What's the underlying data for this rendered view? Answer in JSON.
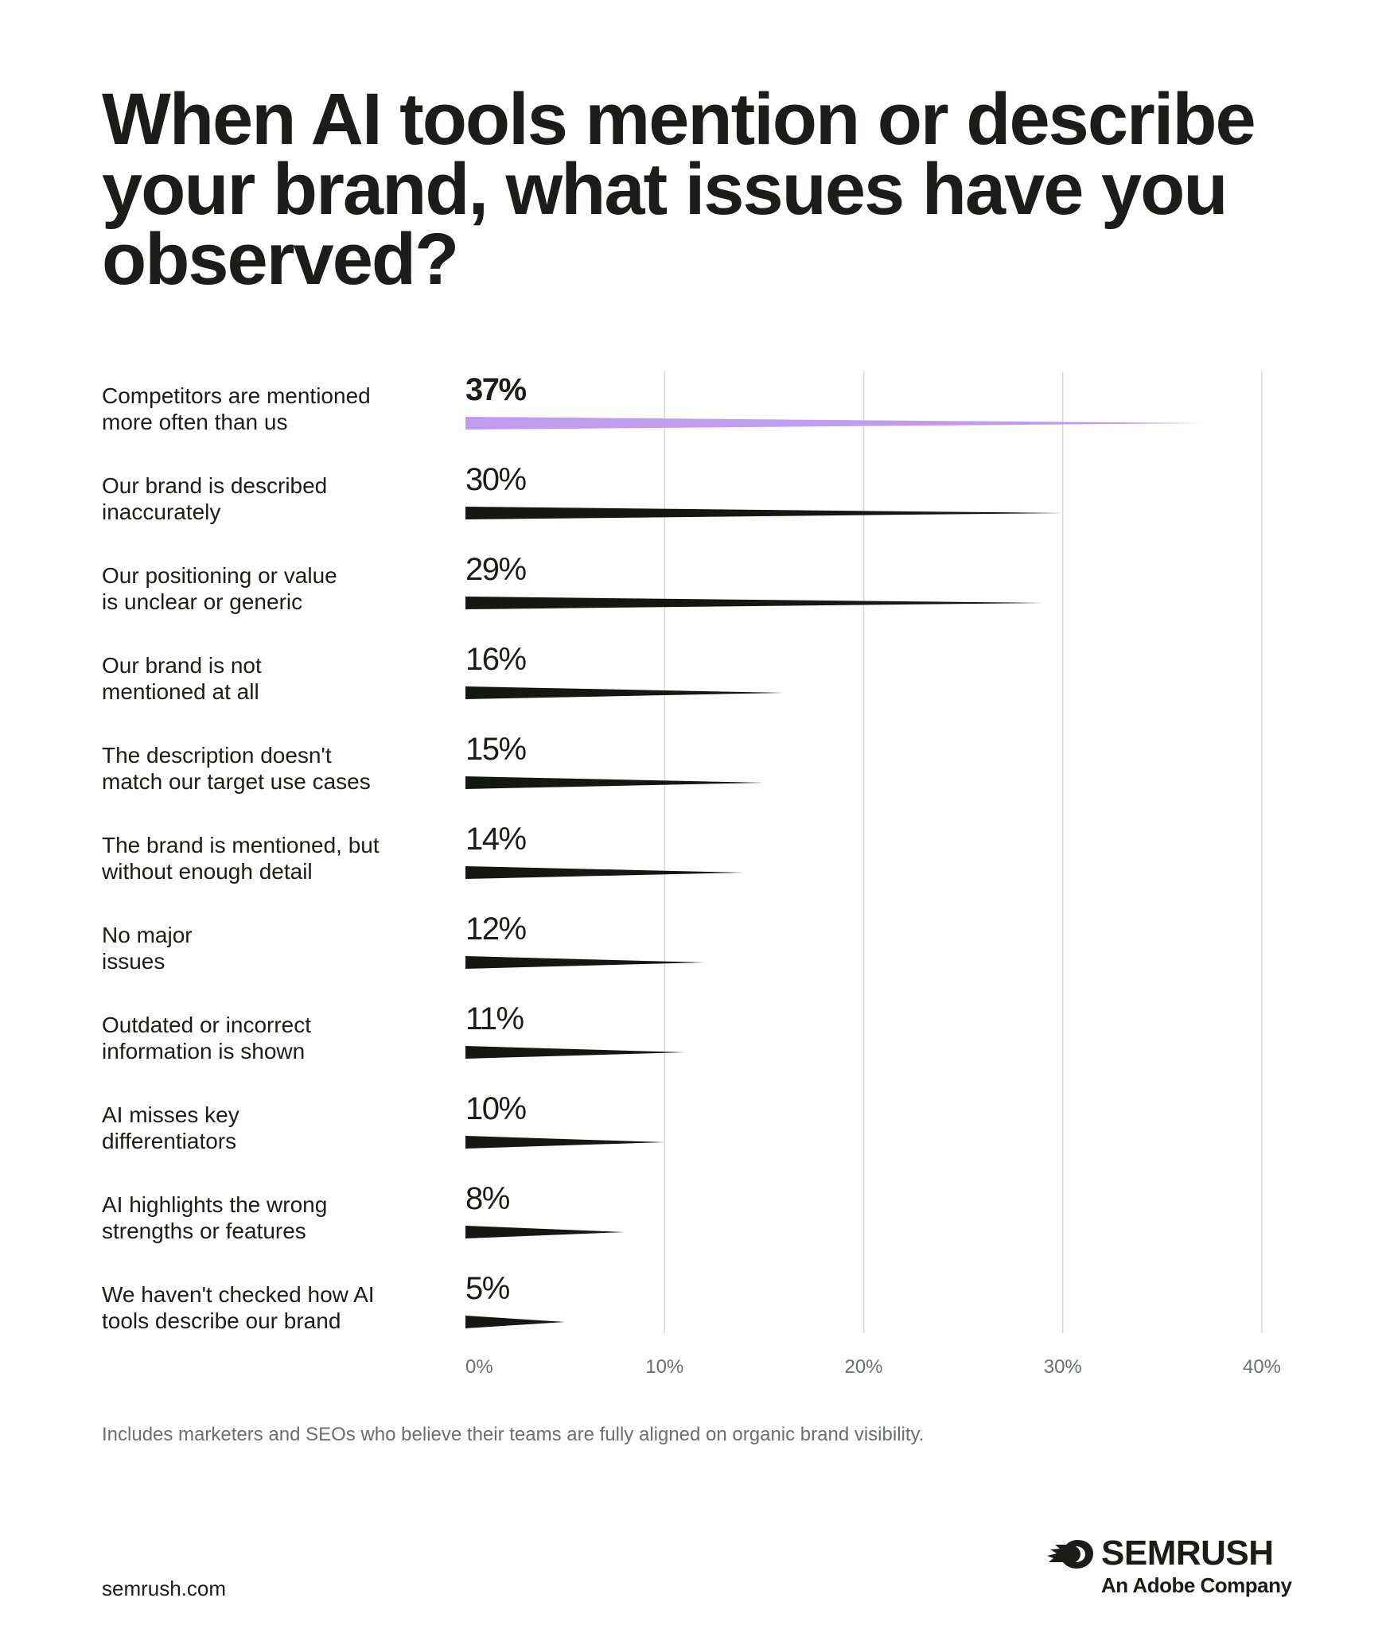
{
  "title": "When AI tools mention or describe\nyour brand, what issues have you\nobserved?",
  "footnote": "Includes marketers and SEOs who believe their teams are fully aligned on organic brand visibility.",
  "source_url": "semrush.com",
  "brand": {
    "name": "SEMRUSH",
    "tagline": "An Adobe Company",
    "logo_icon": "semrush-flame-icon"
  },
  "colors": {
    "text": "#1b1d1a",
    "bar": "#151712",
    "highlight_bar": "#c19bf0",
    "grid": "#d8d8dc",
    "tick_text": "#6c6e73"
  },
  "chart_data": {
    "type": "bar",
    "orientation": "horizontal",
    "categories": [
      "Competitors are mentioned\nmore often than us",
      "Our brand is described\ninaccurately",
      "Our positioning or value\nis unclear or generic",
      "Our brand is not\nmentioned at all",
      "The description doesn't\nmatch our target use cases",
      "The brand is mentioned, but\nwithout enough detail",
      "No major\nissues",
      "Outdated or incorrect\ninformation is shown",
      "AI misses key\ndifferentiators",
      "AI highlights the wrong\nstrengths or features",
      "We haven't checked how AI\ntools describe our brand"
    ],
    "values": [
      37,
      30,
      29,
      16,
      15,
      14,
      12,
      11,
      10,
      8,
      5
    ],
    "value_labels": [
      "37%",
      "30%",
      "29%",
      "16%",
      "15%",
      "14%",
      "12%",
      "11%",
      "10%",
      "8%",
      "5%"
    ],
    "highlight_index": 0,
    "xlim": [
      0,
      40
    ],
    "x_ticks": [
      0,
      10,
      20,
      30,
      40
    ],
    "x_tick_labels": [
      "0%",
      "10%",
      "20%",
      "30%",
      "40%"
    ],
    "grid": true,
    "legend": false
  }
}
